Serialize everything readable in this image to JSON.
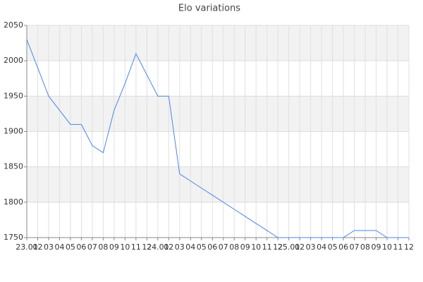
{
  "chart_data": {
    "type": "line",
    "title": "Elo variations",
    "categories": [
      "23.01",
      "02",
      "03",
      "04",
      "05",
      "06",
      "07",
      "08",
      "09",
      "10",
      "11",
      "12",
      "24.01",
      "02",
      "03",
      "04",
      "05",
      "06",
      "07",
      "08",
      "09",
      "10",
      "11",
      "12",
      "25.01",
      "02",
      "03",
      "04",
      "05",
      "06",
      "07",
      "08",
      "09",
      "10",
      "11",
      "12"
    ],
    "values": [
      2030,
      1990,
      1950,
      1930,
      1910,
      1910,
      1880,
      1870,
      1930,
      1968,
      2010,
      1980,
      1950,
      1950,
      1840,
      1830,
      1820,
      1810,
      1800,
      1790,
      1780,
      1770,
      1760,
      1750,
      1750,
      1750,
      1750,
      1750,
      1750,
      1750,
      1760,
      1760,
      1760,
      1750,
      1750,
      1750
    ],
    "color": "#4a86e8",
    "ylim": [
      1750,
      2050
    ],
    "yticks": [
      1750,
      1800,
      1850,
      1900,
      1950,
      2000,
      2050
    ],
    "grid": true
  }
}
